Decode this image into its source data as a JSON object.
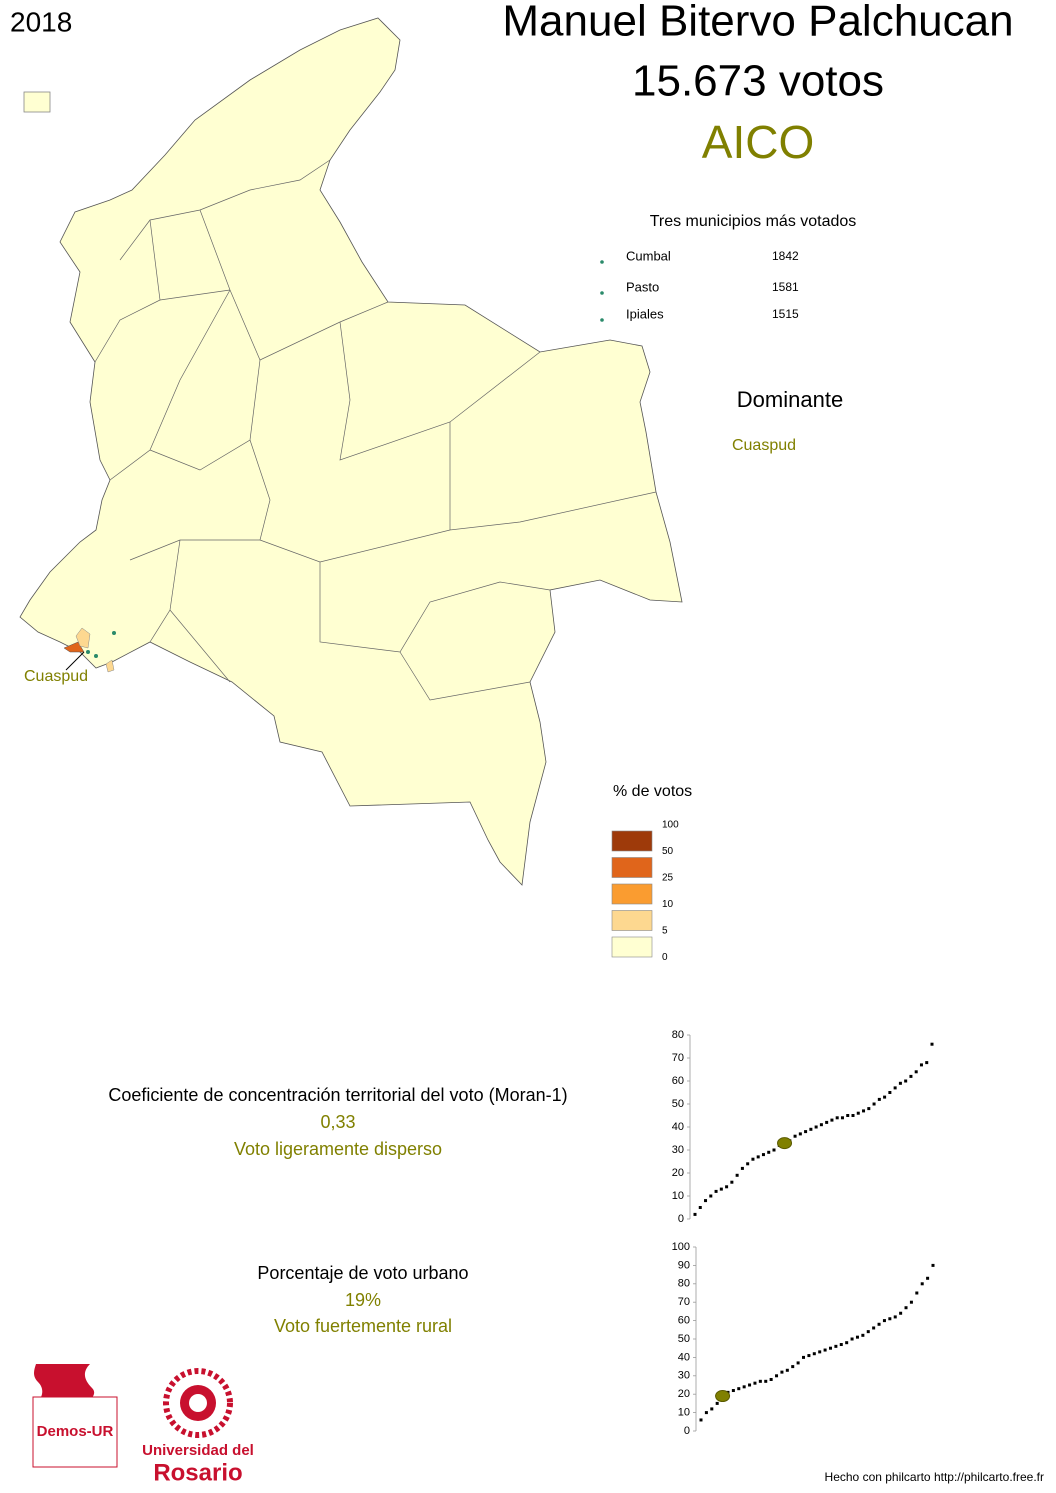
{
  "year": "2018",
  "header": {
    "candidate": "Manuel Bitervo Palchucan",
    "votes": "15.673 votos",
    "party": "AICO"
  },
  "top_municipalities": {
    "title": "Tres municipios más votados",
    "rows": [
      {
        "name": "Cumbal",
        "votes": "1842"
      },
      {
        "name": "Pasto",
        "votes": "1581"
      },
      {
        "name": "Ipiales",
        "votes": "1515"
      }
    ]
  },
  "dominant": {
    "title": "Dominante",
    "value": "Cuaspud"
  },
  "map_label": "Cuaspud",
  "legend": {
    "title": "% de votos",
    "ticks": [
      100,
      50,
      25,
      10,
      5,
      0
    ],
    "colors": [
      "#9e3a0a",
      "#e0651b",
      "#fa9c30",
      "#fdd890",
      "#ffffd2"
    ]
  },
  "moran": {
    "title": "Coeficiente de concentración territorial del voto (Moran-1)",
    "value": "0,33",
    "label": "Voto ligeramente disperso",
    "chart": {
      "type": "scatter",
      "ylim": [
        0,
        80
      ],
      "yticks": [
        0,
        10,
        20,
        30,
        40,
        50,
        60,
        70,
        80
      ],
      "highlight": 33,
      "values": [
        2,
        5,
        8,
        10,
        12,
        13,
        14,
        16,
        19,
        22,
        24,
        26,
        27,
        28,
        29,
        30,
        32,
        33,
        34,
        36,
        37,
        38,
        39,
        40,
        41,
        42,
        43,
        44,
        44,
        45,
        45,
        46,
        47,
        48,
        50,
        52,
        53,
        55,
        57,
        59,
        60,
        62,
        64,
        67,
        68,
        76
      ]
    }
  },
  "urban": {
    "title": "Porcentaje de voto urbano",
    "value": "19%",
    "label": "Voto fuertemente rural",
    "chart": {
      "type": "scatter",
      "ylim": [
        0,
        100
      ],
      "yticks": [
        0,
        10,
        20,
        30,
        40,
        50,
        60,
        70,
        80,
        90,
        100
      ],
      "highlight": 19,
      "values": [
        6,
        10,
        12,
        15,
        19,
        21,
        22,
        23,
        24,
        25,
        26,
        27,
        27,
        28,
        30,
        32,
        33,
        35,
        37,
        40,
        41,
        42,
        43,
        44,
        45,
        46,
        47,
        48,
        50,
        51,
        52,
        54,
        56,
        58,
        60,
        61,
        62,
        64,
        67,
        70,
        75,
        80,
        83,
        90
      ]
    }
  },
  "logos": {
    "demos": "Demos-UR",
    "university_line1": "Universidad del",
    "university_line2": "Rosario"
  },
  "footer": "Hecho con philcarto http://philcarto.free.fr"
}
